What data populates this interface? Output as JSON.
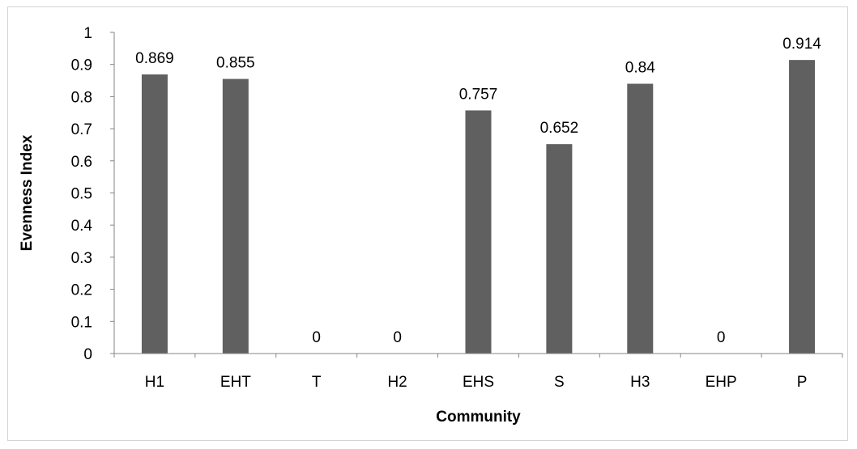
{
  "chart_data": {
    "type": "bar",
    "title": "",
    "xlabel": "Community",
    "ylabel": "Evenness Index",
    "categories": [
      "H1",
      "EHT",
      "T",
      "H2",
      "EHS",
      "S",
      "H3",
      "EHP",
      "P"
    ],
    "values": [
      0.869,
      0.855,
      0,
      0,
      0.757,
      0.652,
      0.84,
      0,
      0.914
    ],
    "data_labels": [
      "0.869",
      "0.855",
      "0",
      "0",
      "0.757",
      "0.652",
      "0.84",
      "0",
      "0.914"
    ],
    "y_ticks": [
      "0",
      "0.1",
      "0.2",
      "0.3",
      "0.4",
      "0.5",
      "0.6",
      "0.7",
      "0.8",
      "0.9",
      "1"
    ],
    "ylim": [
      0,
      1
    ],
    "grid": false,
    "legend": "none",
    "bar_color": "#606060"
  }
}
